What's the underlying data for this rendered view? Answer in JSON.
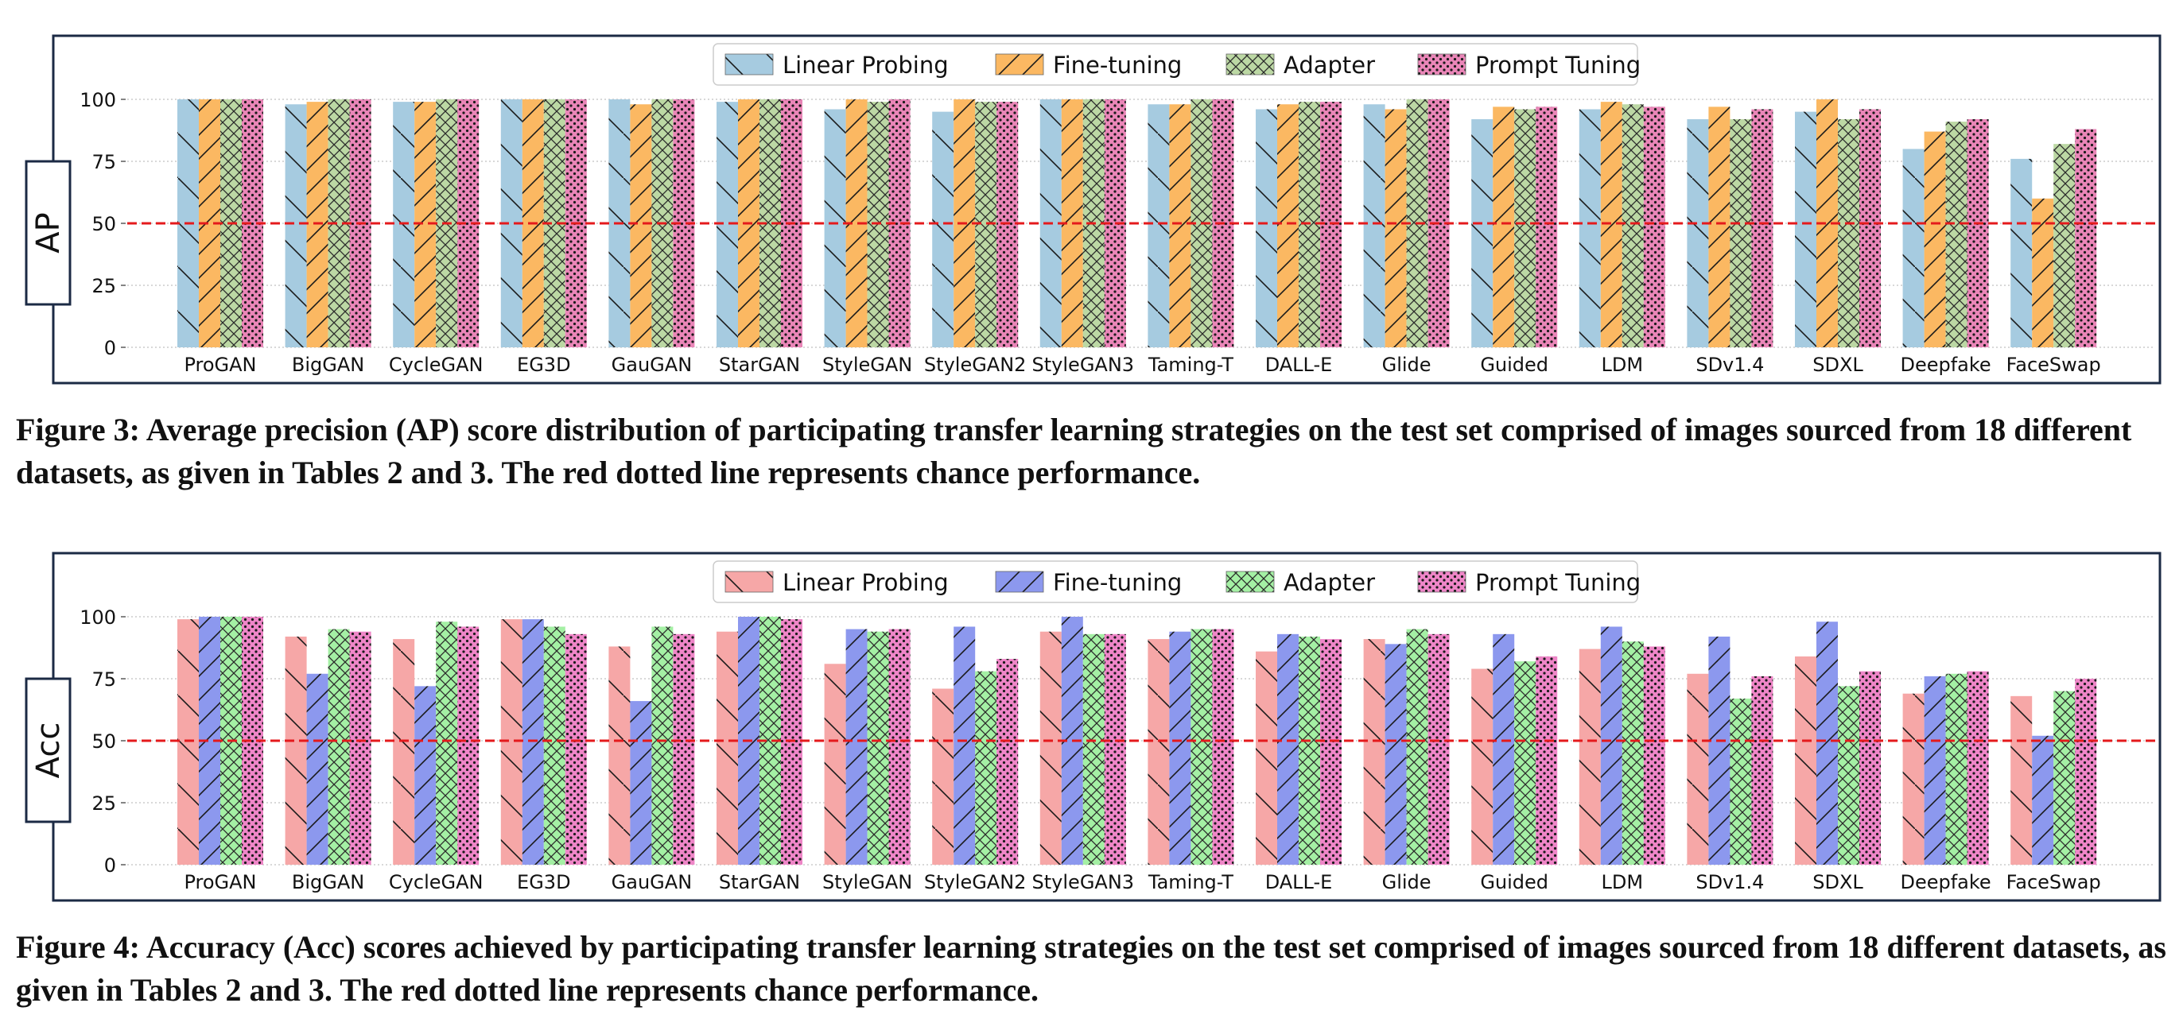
{
  "figures": [
    {
      "caption": "Figure 3: Average precision (AP) score distribution of participating transfer learning strategies on the test set comprised of images sourced from 18 different datasets, as given in Tables 2 and 3. The red dotted line represents chance performance."
    },
    {
      "caption": "Figure 4: Accuracy (Acc) scores achieved by participating transfer learning strategies on the test set comprised of images sourced from 18 different datasets, as given in Tables 2 and 3. The red dotted line represents chance performance."
    }
  ],
  "chart_data": [
    {
      "type": "bar",
      "ylabel": "AP",
      "ylim": [
        0,
        100
      ],
      "yticks": [
        0,
        25,
        50,
        75,
        100
      ],
      "grid": "horizontal dotted",
      "legend_position": "top-center",
      "reference_line": {
        "y": 50,
        "color": "#e41a1c",
        "style": "dashed"
      },
      "categories": [
        "ProGAN",
        "BigGAN",
        "CycleGAN",
        "EG3D",
        "GauGAN",
        "StarGAN",
        "StyleGAN",
        "StyleGAN2",
        "StyleGAN3",
        "Taming-T",
        "DALL-E",
        "Glide",
        "Guided",
        "LDM",
        "SDv1.4",
        "SDXL",
        "Deepfake",
        "FaceSwap"
      ],
      "series": [
        {
          "name": "Linear Probing",
          "color": "#a6cbe0",
          "hatch": "back-diagonal",
          "values": [
            100,
            98,
            99,
            100,
            100,
            99,
            96,
            95,
            100,
            98,
            96,
            98,
            92,
            96,
            92,
            95,
            80,
            76
          ]
        },
        {
          "name": "Fine-tuning",
          "color": "#fbb862",
          "hatch": "forward-diagonal",
          "values": [
            100,
            99,
            99,
            100,
            98,
            100,
            100,
            100,
            100,
            98,
            98,
            96,
            97,
            99,
            97,
            100,
            87,
            60
          ]
        },
        {
          "name": "Adapter",
          "color": "#bcd8a4",
          "hatch": "cross",
          "values": [
            100,
            100,
            100,
            100,
            100,
            100,
            99,
            99,
            100,
            100,
            99,
            100,
            96,
            98,
            92,
            92,
            91,
            82
          ]
        },
        {
          "name": "Prompt Tuning",
          "color": "#ea86b8",
          "hatch": "dots",
          "values": [
            100,
            100,
            100,
            100,
            100,
            100,
            100,
            99,
            100,
            100,
            99,
            100,
            97,
            97,
            96,
            96,
            92,
            88
          ]
        }
      ]
    },
    {
      "type": "bar",
      "ylabel": "Acc",
      "ylim": [
        0,
        100
      ],
      "yticks": [
        0,
        25,
        50,
        75,
        100
      ],
      "grid": "horizontal dotted",
      "legend_position": "top-center",
      "reference_line": {
        "y": 50,
        "color": "#e41a1c",
        "style": "dashed"
      },
      "categories": [
        "ProGAN",
        "BigGAN",
        "CycleGAN",
        "EG3D",
        "GauGAN",
        "StarGAN",
        "StyleGAN",
        "StyleGAN2",
        "StyleGAN3",
        "Taming-T",
        "DALL-E",
        "Glide",
        "Guided",
        "LDM",
        "SDv1.4",
        "SDXL",
        "Deepfake",
        "FaceSwap"
      ],
      "series": [
        {
          "name": "Linear Probing",
          "color": "#f6a7a7",
          "hatch": "back-diagonal",
          "values": [
            99,
            92,
            91,
            99,
            88,
            94,
            81,
            71,
            94,
            91,
            86,
            91,
            79,
            87,
            77,
            84,
            69,
            68
          ]
        },
        {
          "name": "Fine-tuning",
          "color": "#8c98ee",
          "hatch": "forward-diagonal",
          "values": [
            100,
            77,
            72,
            99,
            66,
            100,
            95,
            96,
            100,
            94,
            93,
            89,
            93,
            96,
            92,
            98,
            76,
            52
          ]
        },
        {
          "name": "Adapter",
          "color": "#a4f0a4",
          "hatch": "cross",
          "values": [
            100,
            95,
            98,
            96,
            96,
            100,
            94,
            78,
            93,
            95,
            92,
            95,
            82,
            90,
            67,
            72,
            77,
            70
          ]
        },
        {
          "name": "Prompt Tuning",
          "color": "#ef86c8",
          "hatch": "dots",
          "values": [
            100,
            94,
            96,
            93,
            93,
            99,
            95,
            83,
            93,
            95,
            91,
            93,
            84,
            88,
            76,
            78,
            78,
            75
          ]
        }
      ]
    }
  ]
}
